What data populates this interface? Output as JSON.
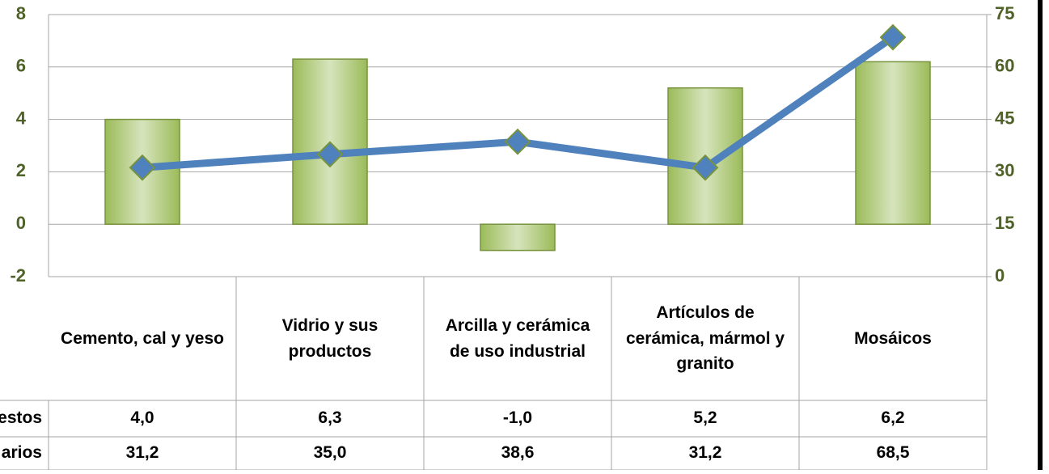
{
  "chart_data": {
    "type": "bar",
    "categories": [
      "Cemento, cal y yeso",
      "Vidrio y sus productos",
      "Arcilla y cerámica de uso industrial",
      "Artículos de cerámica, mármol y granito",
      "Mosáicos"
    ],
    "series": [
      {
        "name": "estos",
        "type": "bar",
        "color": "#9bbb59",
        "values": [
          4.0,
          6.3,
          -1.0,
          5.2,
          6.2
        ],
        "value_labels": [
          "4,0",
          "6,3",
          "-1,0",
          "5,2",
          "6,2"
        ]
      },
      {
        "name": "arios",
        "type": "line",
        "axis": "y2",
        "color": "#4f81bd",
        "values": [
          31.2,
          35.0,
          38.6,
          31.2,
          68.5
        ],
        "value_labels": [
          "31,2",
          "35,0",
          "38,6",
          "31,2",
          "68,5"
        ]
      }
    ],
    "ylim": [
      -2,
      8
    ],
    "yticks": [
      -2,
      0,
      2,
      4,
      6,
      8
    ],
    "y2lim": [
      0,
      75
    ],
    "y2ticks": [
      0,
      15,
      30,
      45,
      60,
      75
    ],
    "grid": true
  }
}
